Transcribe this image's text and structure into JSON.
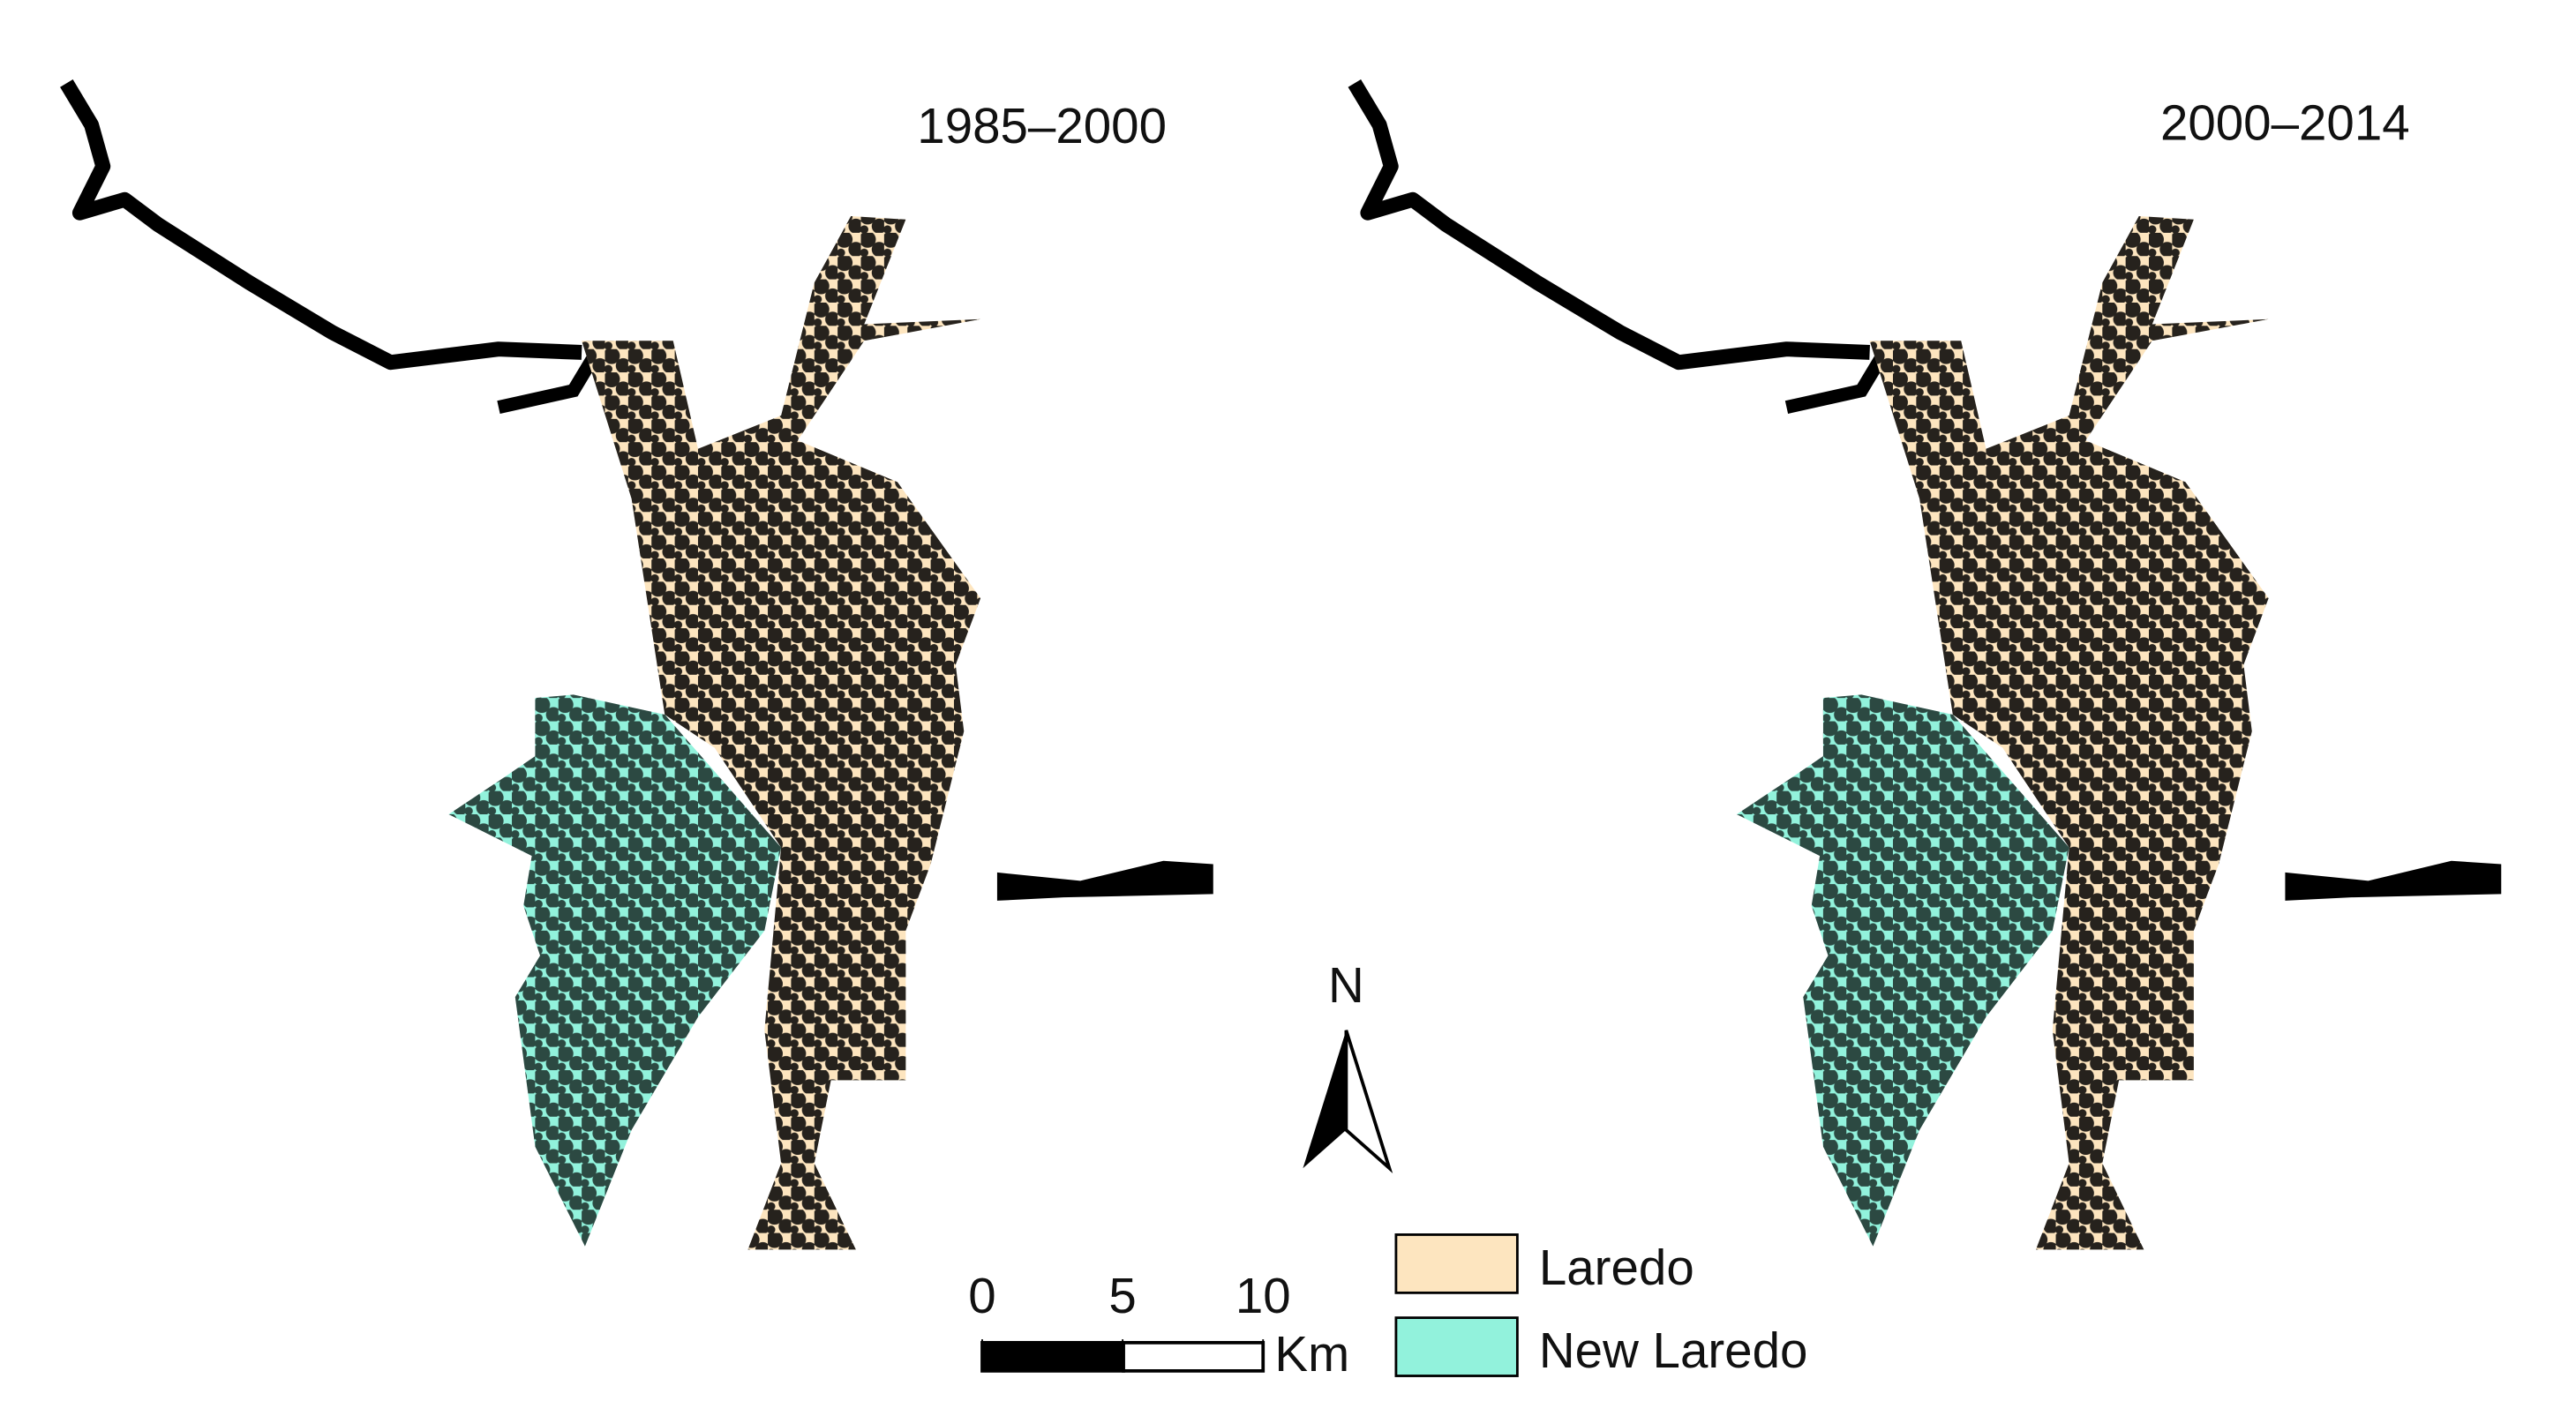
{
  "maps": [
    {
      "title": "1985–2000"
    },
    {
      "title": "2000–2014"
    }
  ],
  "north": "N",
  "scale": {
    "ticks": [
      0,
      5,
      10
    ],
    "unit": "Km"
  },
  "legend": [
    {
      "label": "Laredo",
      "color": "#fde5bf"
    },
    {
      "label": "New Laredo",
      "color": "#92f2dc"
    }
  ]
}
